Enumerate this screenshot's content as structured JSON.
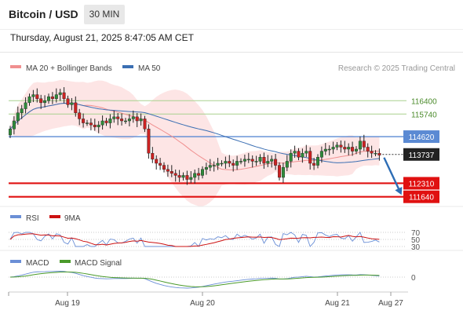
{
  "header": {
    "title": "Bitcoin / USD",
    "timeframe": "30 MIN",
    "timestamp": "Thursday, August 21, 2025 8:47:05 AM CET"
  },
  "colors": {
    "bull": "#2e8b3a",
    "bear": "#cc2222",
    "wick": "#222222",
    "ma20": "#f08f8f",
    "ma50": "#3b6fb3",
    "bollinger_fill": "#fde0e0",
    "pivot_line": "#a9d18e",
    "resistance_line": "#5b8ad3",
    "support_line": "#e01010",
    "current_price_bg": "#222222",
    "arrow": "#2d6db5",
    "rsi": "#6b8fd6",
    "rsi_ma": "#cc1111",
    "macd": "#6b8fd6",
    "macd_signal": "#4a9a2a",
    "copyright": "#999999"
  },
  "legend": {
    "ma20_label": "MA 20 + Bollinger Bands",
    "ma50_label": "MA 50",
    "copyright": "Research © 2025 Trading Central",
    "rsi_label": "RSI",
    "rsi_ma_label": "9MA",
    "macd_label": "MACD",
    "macd_signal_label": "MACD Signal"
  },
  "chart_data": {
    "type": "candlestick",
    "price_range": [
      111200,
      117500
    ],
    "levels": [
      {
        "label": "116400",
        "value": 116400,
        "kind": "pivot"
      },
      {
        "label": "115740",
        "value": 115740,
        "kind": "pivot"
      },
      {
        "label": "114620",
        "value": 114620,
        "kind": "resistance"
      },
      {
        "label": "113737",
        "value": 113737,
        "kind": "current"
      },
      {
        "label": "112310",
        "value": 112310,
        "kind": "support"
      },
      {
        "label": "111640",
        "value": 111640,
        "kind": "support"
      }
    ],
    "x_ticks": [
      "Aug 19",
      "Aug 20",
      "Aug 21",
      "Aug 27"
    ],
    "rsi_ticks": [
      "70",
      "50",
      "30"
    ],
    "macd_ticks": [
      "0"
    ],
    "closes": [
      115000,
      115400,
      115800,
      116000,
      116300,
      116600,
      116700,
      116500,
      116300,
      116400,
      116600,
      116500,
      116700,
      116800,
      116500,
      116200,
      116300,
      115800,
      115500,
      115300,
      115300,
      115200,
      115100,
      115200,
      115400,
      115300,
      115500,
      115600,
      115500,
      115400,
      115400,
      115500,
      115600,
      115400,
      115500,
      115000,
      113800,
      113500,
      113300,
      113200,
      113000,
      112900,
      112800,
      112700,
      112600,
      112700,
      112500,
      112600,
      112800,
      112700,
      113000,
      113100,
      113200,
      113200,
      113300,
      113300,
      113400,
      113300,
      113200,
      113400,
      113400,
      113500,
      113500,
      113400,
      113400,
      113600,
      113300,
      113400,
      113500,
      113200,
      112600,
      113100,
      113400,
      113800,
      113900,
      113600,
      113800,
      113900,
      113300,
      113200,
      113600,
      113900,
      114000,
      114000,
      114100,
      114200,
      114100,
      114000,
      114100,
      113900,
      114000,
      114400,
      114100,
      113900,
      113800,
      113800,
      113700
    ],
    "projection": {
      "from": 113737,
      "to": 111640
    }
  }
}
